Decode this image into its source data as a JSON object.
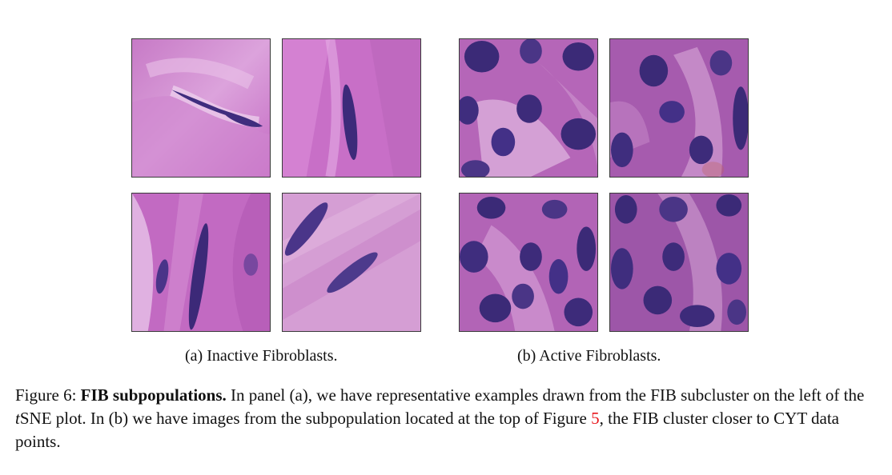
{
  "panels": {
    "a": {
      "caption": "(a) Inactive Fibroblasts.",
      "images": [
        "inactive-fibroblast-1",
        "inactive-fibroblast-2",
        "inactive-fibroblast-3",
        "inactive-fibroblast-4"
      ]
    },
    "b": {
      "caption": "(b) Active Fibroblasts.",
      "images": [
        "active-fibroblast-1",
        "active-fibroblast-2",
        "active-fibroblast-3",
        "active-fibroblast-4"
      ]
    }
  },
  "caption": {
    "label": "Figure 6:",
    "title": "FIB subpopulations.",
    "text1": "In panel (a), we have representative examples drawn from the FIB subcluster on the left of the",
    "tsne_t": "t",
    "tsne_rest": "SNE plot. In (b) we have images from the subpopulation located at the top of Figure",
    "ref": "5",
    "text2": ", the FIB cluster closer to CYT data points."
  },
  "colors": {
    "stroma_pink": "#c56bc4",
    "stroma_light": "#e8b5e6",
    "nucleus_dark": "#3f2d7e",
    "reference_red": "#e8141a"
  }
}
